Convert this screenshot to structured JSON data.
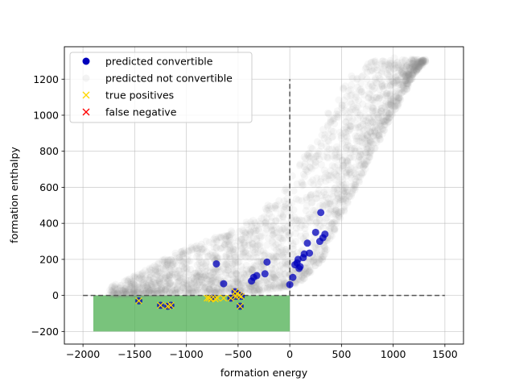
{
  "chart_data": {
    "type": "scatter",
    "xlabel": "formation energy",
    "ylabel": "formation enthalpy",
    "xlim": [
      -2180,
      1680
    ],
    "ylim": [
      -270,
      1380
    ],
    "x_ticks": [
      -2000,
      -1500,
      -1000,
      -500,
      0,
      500,
      1000,
      1500
    ],
    "x_tick_labels": [
      "−2000",
      "−1500",
      "−1000",
      "−500",
      "0",
      "500",
      "1000",
      "1500"
    ],
    "y_ticks": [
      -200,
      0,
      200,
      400,
      600,
      800,
      1000,
      1200
    ],
    "y_tick_labels": [
      "−200",
      "0",
      "200",
      "400",
      "600",
      "800",
      "1000",
      "1200"
    ],
    "grid": true,
    "legend_position": "top-left",
    "colors": {
      "convertible": "#0000bb",
      "not_convertible": "#888888",
      "true_positive": "#ffd700",
      "false_negative": "#ff0000",
      "region": "#4caf50",
      "dashed": "#555555"
    },
    "highlight_region": {
      "x": [
        -1900,
        0
      ],
      "y": [
        -200,
        0
      ]
    },
    "reference_lines": {
      "horizontal": {
        "y": 0,
        "x": [
          -2000,
          1500
        ]
      },
      "vertical": {
        "x": 0,
        "y": [
          0,
          1200
        ]
      }
    },
    "not_convertible_envelope": {
      "lower": [
        [
          -1900,
          0
        ],
        [
          -1500,
          5
        ],
        [
          -1000,
          10
        ],
        [
          -500,
          15
        ],
        [
          -300,
          20
        ],
        [
          0,
          50
        ],
        [
          100,
          80
        ],
        [
          200,
          130
        ],
        [
          300,
          200
        ],
        [
          400,
          330
        ],
        [
          500,
          440
        ],
        [
          600,
          560
        ],
        [
          700,
          680
        ],
        [
          800,
          800
        ],
        [
          900,
          910
        ],
        [
          1000,
          1020
        ],
        [
          1100,
          1130
        ],
        [
          1200,
          1230
        ],
        [
          1300,
          1300
        ]
      ],
      "upper": [
        [
          -1900,
          10
        ],
        [
          -1500,
          110
        ],
        [
          -1200,
          210
        ],
        [
          -1000,
          270
        ],
        [
          -800,
          310
        ],
        [
          -600,
          350
        ],
        [
          -400,
          420
        ],
        [
          -200,
          500
        ],
        [
          -50,
          580
        ],
        [
          0,
          650
        ],
        [
          100,
          740
        ],
        [
          200,
          850
        ],
        [
          300,
          930
        ],
        [
          400,
          1030
        ],
        [
          500,
          1150
        ],
        [
          600,
          1230
        ],
        [
          800,
          1300
        ],
        [
          1000,
          1320
        ],
        [
          1300,
          1310
        ]
      ]
    },
    "series": [
      {
        "name": "predicted convertible",
        "x": [
          -1460,
          -1250,
          -1180,
          -1150,
          -750,
          -710,
          -640,
          -570,
          -530,
          -520,
          -510,
          -490,
          -480,
          -470,
          -370,
          -350,
          -320,
          -240,
          -220,
          0,
          30,
          50,
          70,
          80,
          90,
          100,
          130,
          140,
          170,
          190,
          250,
          290,
          300,
          320,
          340
        ],
        "y": [
          -30,
          -55,
          -60,
          -55,
          -15,
          175,
          65,
          -15,
          20,
          -5,
          10,
          0,
          -60,
          -5,
          80,
          100,
          110,
          120,
          185,
          60,
          100,
          170,
          180,
          200,
          150,
          160,
          210,
          230,
          290,
          235,
          350,
          300,
          460,
          320,
          340
        ]
      },
      {
        "name": "predicted not convertible",
        "x": [],
        "y": []
      },
      {
        "name": "true positives",
        "x": [
          -1460,
          -1250,
          -1180,
          -1150,
          -800,
          -780,
          -760,
          -720,
          -700,
          -640,
          -570,
          -530,
          -520,
          -510,
          -490,
          -480,
          -470
        ],
        "y": [
          -30,
          -55,
          -60,
          -55,
          -15,
          -15,
          -20,
          -20,
          -15,
          -15,
          -15,
          20,
          -5,
          10,
          0,
          -60,
          -5
        ]
      },
      {
        "name": "false negative",
        "x": [],
        "y": []
      }
    ]
  }
}
